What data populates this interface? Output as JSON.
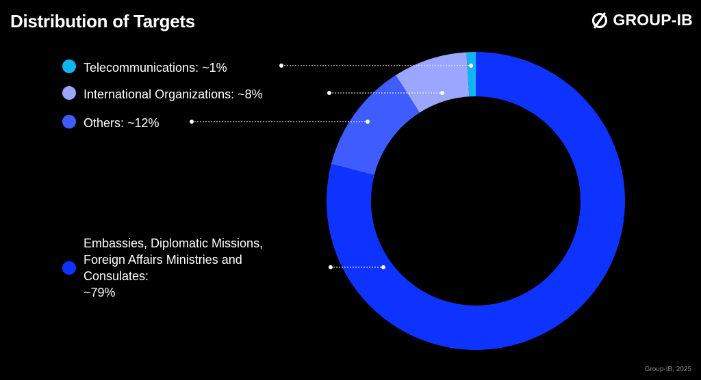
{
  "header": {
    "title": "Distribution of Targets"
  },
  "logo": {
    "text": "GROUP-IB"
  },
  "footer": {
    "text": "Group-IB, 2025"
  },
  "chart_data": {
    "type": "pie",
    "variant": "donut",
    "title": "Distribution of Targets",
    "slices": [
      {
        "label": "Embassies, Diplomatic Missions,\nForeign Affairs Ministries and\nConsulates:\n~79%",
        "name": "Embassies, Diplomatic Missions, Foreign Affairs Ministries and Consulates",
        "value": 79,
        "color": "#0f33ff"
      },
      {
        "label": "Others: ~12%",
        "name": "Others",
        "value": 12,
        "color": "#3f5dff"
      },
      {
        "label": "International Organizations: ~8%",
        "name": "International Organizations",
        "value": 8,
        "color": "#9aa6ff"
      },
      {
        "label": "Telecommunications: ~1%",
        "name": "Telecommunications",
        "value": 1,
        "color": "#12b4f0"
      }
    ],
    "legend_position": "left",
    "colors": {
      "background": "#000000",
      "leader_line": "#ffffff"
    }
  }
}
